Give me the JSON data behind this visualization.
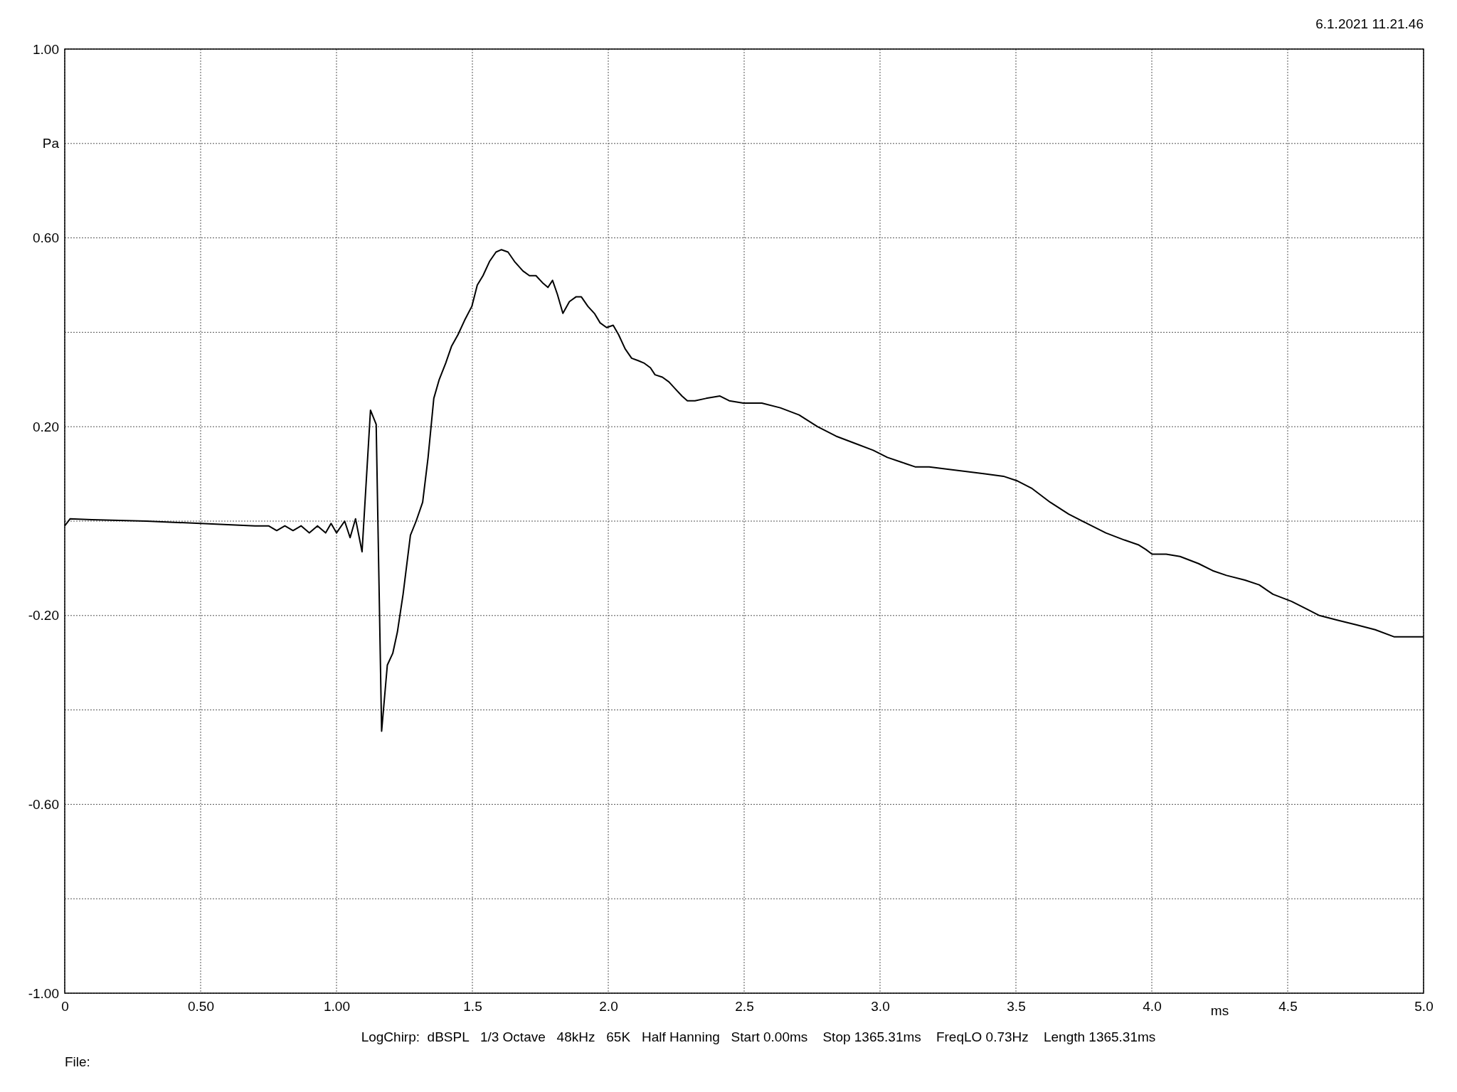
{
  "chart_data": {
    "type": "line",
    "xlabel": "ms",
    "ylabel": "Pa",
    "annotations": [
      "6.1.2021 11.21.46",
      "LogChirp:  dBSPL   1/3 Octave   48kHz   65K   Half Hanning   Start 0.00ms    Stop 1365.31ms    FreqLO 0.73Hz    Length 1365.31ms",
      "File:"
    ],
    "xlim": [
      0,
      5
    ],
    "ylim": [
      -1,
      1
    ],
    "xticks": [
      0,
      {
        "value": 0.5,
        "label": "0.50"
      },
      {
        "value": 1,
        "label": "1.00"
      },
      1.5,
      {
        "value": 2,
        "label": "2.0"
      },
      2.5,
      {
        "value": 3,
        "label": "3.0"
      },
      3.5,
      {
        "value": 4,
        "label": "4.0"
      },
      4.5,
      {
        "value": 5,
        "label": "5.0"
      }
    ],
    "yticks": [
      {
        "value": -1,
        "label": "-1.00"
      },
      {
        "value": -0.8,
        "label": null
      },
      {
        "value": -0.6,
        "label": "-0.60"
      },
      {
        "value": -0.4,
        "label": null
      },
      {
        "value": -0.2,
        "label": "-0.20"
      },
      {
        "value": 0,
        "label": null
      },
      {
        "value": 0.2,
        "label": "0.20"
      },
      {
        "value": 0.4,
        "label": null
      },
      {
        "value": 0.6,
        "label": "0.60"
      },
      {
        "value": 0.8,
        "label": null
      },
      {
        "value": 1,
        "label": "1.00"
      }
    ],
    "grid": true,
    "line_style": "solid",
    "marker": "none",
    "series": [
      {
        "color": "#000000",
        "x": [
          0,
          0.02,
          0.1,
          0.3,
          0.5,
          0.7,
          0.75,
          0.78,
          0.81,
          0.84,
          0.87,
          0.9,
          0.93,
          0.96,
          0.98,
          1.0,
          1.03,
          1.05,
          1.07,
          1.094,
          1.125,
          1.146,
          1.166,
          1.187,
          1.207,
          1.224,
          1.245,
          1.272,
          1.293,
          1.317,
          1.337,
          1.358,
          1.378,
          1.402,
          1.423,
          1.447,
          1.471,
          1.498,
          1.518,
          1.539,
          1.563,
          1.587,
          1.607,
          1.631,
          1.655,
          1.686,
          1.71,
          1.734,
          1.758,
          1.778,
          1.795,
          1.813,
          1.833,
          1.857,
          1.881,
          1.901,
          1.925,
          1.949,
          1.97,
          1.994,
          2.018,
          2.038,
          2.062,
          2.086,
          2.11,
          2.131,
          2.155,
          2.172,
          2.199,
          2.223,
          2.247,
          2.271,
          2.291,
          2.319,
          2.36,
          2.411,
          2.445,
          2.497,
          2.565,
          2.633,
          2.702,
          2.77,
          2.838,
          2.907,
          2.975,
          3.027,
          3.078,
          3.129,
          3.181,
          3.249,
          3.318,
          3.386,
          3.454,
          3.506,
          3.557,
          3.626,
          3.694,
          3.762,
          3.831,
          3.899,
          3.95,
          3.978,
          4.001,
          4.053,
          4.104,
          4.172,
          4.224,
          4.275,
          4.343,
          4.395,
          4.446,
          4.514,
          4.566,
          4.617,
          4.685,
          4.754,
          4.822,
          4.891,
          4.942,
          5.0
        ],
        "values": [
          -0.01,
          0.005,
          0.003,
          0.0,
          -0.005,
          -0.01,
          -0.01,
          -0.02,
          -0.01,
          -0.02,
          -0.01,
          -0.025,
          -0.01,
          -0.025,
          -0.005,
          -0.025,
          0.0,
          -0.035,
          0.005,
          -0.065,
          0.235,
          0.205,
          -0.445,
          -0.305,
          -0.28,
          -0.235,
          -0.155,
          -0.03,
          0.0,
          0.04,
          0.135,
          0.26,
          0.3,
          0.335,
          0.37,
          0.395,
          0.425,
          0.455,
          0.5,
          0.52,
          0.55,
          0.57,
          0.575,
          0.57,
          0.55,
          0.53,
          0.52,
          0.52,
          0.505,
          0.495,
          0.51,
          0.48,
          0.44,
          0.465,
          0.475,
          0.475,
          0.455,
          0.44,
          0.42,
          0.41,
          0.415,
          0.395,
          0.365,
          0.345,
          0.34,
          0.335,
          0.325,
          0.31,
          0.305,
          0.295,
          0.28,
          0.265,
          0.255,
          0.255,
          0.26,
          0.265,
          0.255,
          0.25,
          0.25,
          0.24,
          0.225,
          0.2,
          0.18,
          0.165,
          0.15,
          0.135,
          0.125,
          0.115,
          0.115,
          0.11,
          0.105,
          0.1,
          0.095,
          0.085,
          0.07,
          0.04,
          0.015,
          -0.005,
          -0.025,
          -0.04,
          -0.05,
          -0.06,
          -0.07,
          -0.07,
          -0.075,
          -0.09,
          -0.105,
          -0.115,
          -0.125,
          -0.135,
          -0.155,
          -0.17,
          -0.185,
          -0.2,
          -0.21,
          -0.22,
          -0.23,
          -0.245,
          -0.245,
          -0.245
        ]
      }
    ]
  }
}
